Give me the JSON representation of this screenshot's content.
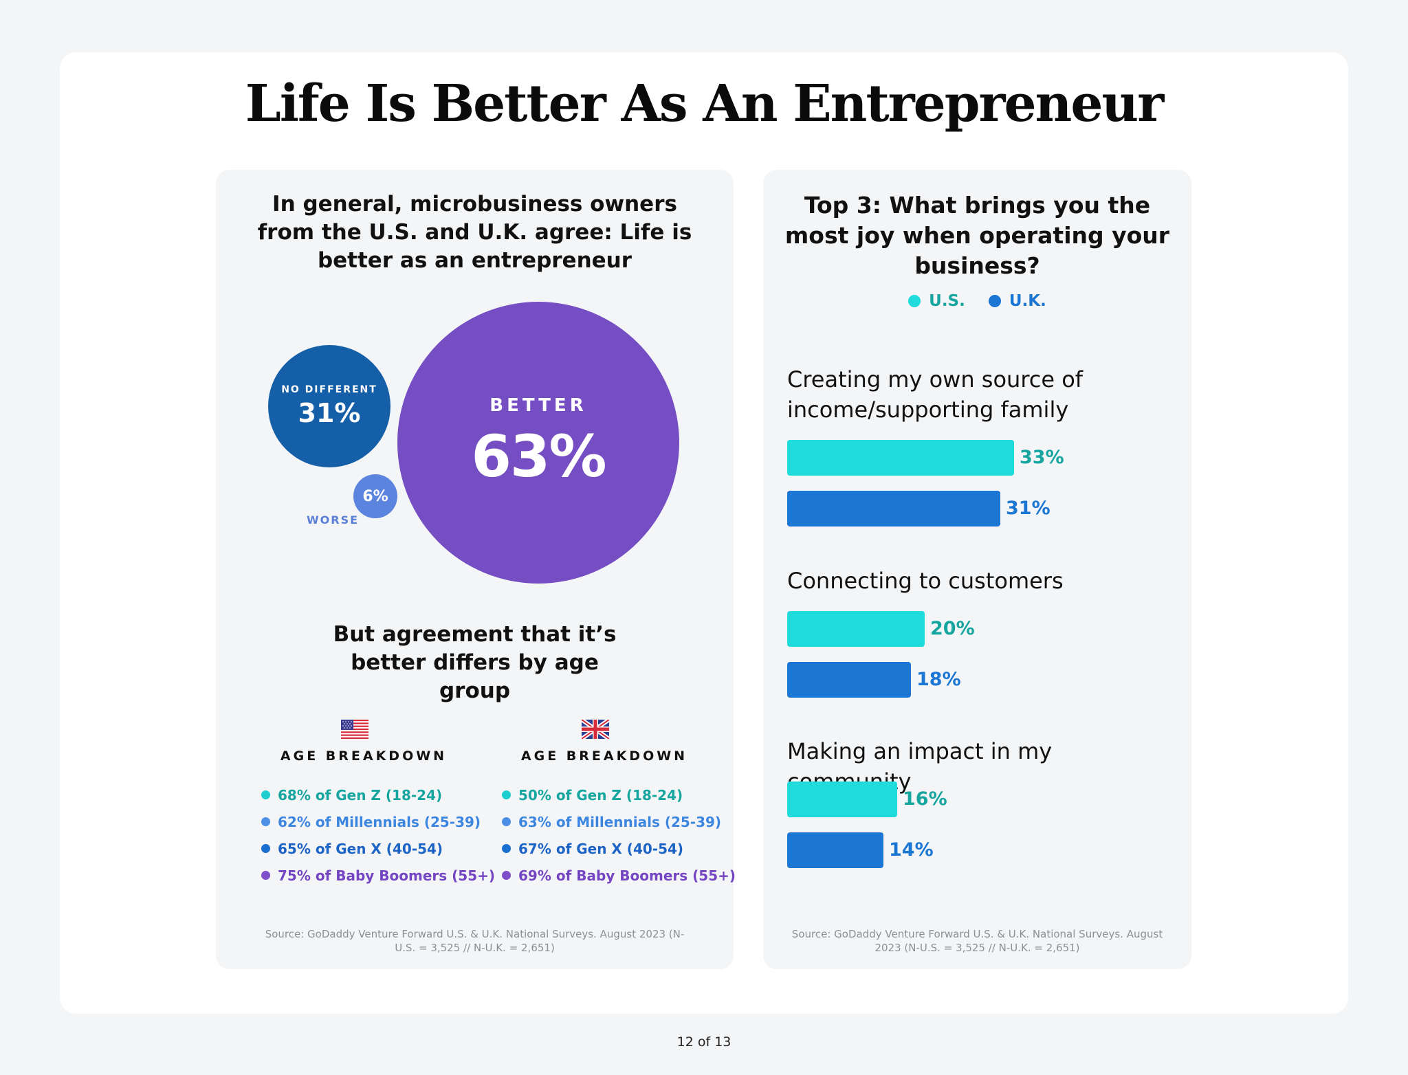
{
  "title": "Life Is Better As An Entrepreneur",
  "page": "12 of 13",
  "colors": {
    "better": "#764ec3",
    "no_different": "#155fa9",
    "worse": "#5b84de",
    "us": "#1fdbdb",
    "uk": "#1b76d4",
    "us_text": "#17a59f",
    "uk_text": "#1b76d4",
    "gen_z": "#1fcfcf",
    "millennials": "#4b90e6",
    "gen_x": "#1b6fd1",
    "boomers": "#7d4ec8"
  },
  "left": {
    "heading": "In general, microbusiness owners from the U.S. and U.K. agree: Life is better as an entrepreneur",
    "bubbles": {
      "better": {
        "label": "BETTER",
        "value": "63%"
      },
      "no_different": {
        "label": "NO DIFFERENT",
        "value": "31%"
      },
      "worse": {
        "label": "WORSE",
        "value": "6%"
      }
    },
    "subheading": "But agreement that it’s better differs by age group",
    "us_flag": "us-flag-icon",
    "uk_flag": "uk-flag-icon",
    "us_breakdown": {
      "heading": "AGE BREAKDOWN",
      "items": [
        "68% of Gen Z (18-24)",
        "62% of Millennials (25-39)",
        "65% of Gen X (40-54)",
        "75% of Baby Boomers (55+)"
      ]
    },
    "uk_breakdown": {
      "heading": "AGE BREAKDOWN",
      "items": [
        "50% of Gen Z (18-24)",
        "63% of Millennials (25-39)",
        "67% of Gen X (40-54)",
        "69% of Baby Boomers (55+)"
      ]
    },
    "source": "Source: GoDaddy Venture Forward U.S. & U.K. National Surveys. August 2023 (N-U.S. = 3,525 // N-U.K. = 2,651)"
  },
  "right": {
    "heading": "Top 3: What brings you the most joy when operating your business?",
    "source": "Source: GoDaddy Venture Forward U.S. & U.K. National Surveys. August 2023 (N-U.S. = 3,525 // N-U.K. = 2,651)"
  },
  "chart_data": [
    {
      "type": "pie",
      "categories": [
        "BETTER",
        "NO DIFFERENT",
        "WORSE"
      ],
      "values": [
        63,
        31,
        6
      ],
      "title": "In general, microbusiness owners from the U.S. and U.K. agree: Life is better as an entrepreneur"
    },
    {
      "type": "bar",
      "title": "Top 3: What brings you the most joy when operating your business?",
      "categories": [
        "Creating my own source of income/supporting family",
        "Connecting to customers",
        "Making an impact in my community"
      ],
      "series": [
        {
          "name": "U.S.",
          "values": [
            33,
            20,
            16
          ]
        },
        {
          "name": "U.K.",
          "values": [
            31,
            18,
            14
          ]
        }
      ],
      "value_suffix": "%",
      "legend": "top"
    }
  ]
}
